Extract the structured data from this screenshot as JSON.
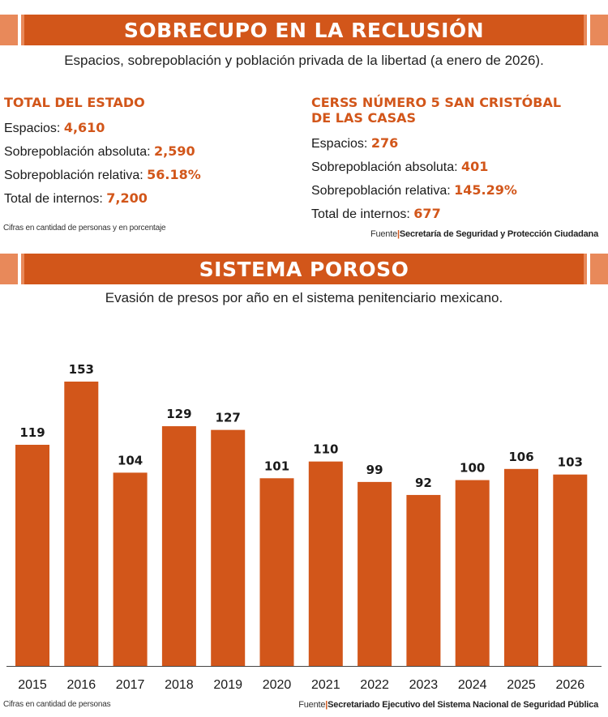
{
  "section1": {
    "title": "SOBRECUPO EN LA RECLUSIÓN",
    "subtitle": "Espacios, sobrepoblación y población privada de la libertad (a enero de 2026).",
    "state": {
      "heading": "TOTAL DEL ESTADO",
      "rows": [
        {
          "label": "Espacios: ",
          "value": "4,610"
        },
        {
          "label": "Sobrepoblación absoluta: ",
          "value": "2,590"
        },
        {
          "label": "Sobrepoblación relativa: ",
          "value": "56.18%"
        },
        {
          "label": "Total de internos: ",
          "value": "7,200"
        }
      ]
    },
    "cerss": {
      "heading_line1": "CERSS NÚMERO 5 SAN CRISTÓBAL",
      "heading_line2": "DE LAS CASAS",
      "rows": [
        {
          "label": "Espacios: ",
          "value": "276"
        },
        {
          "label": "Sobrepoblación absoluta: ",
          "value": "401"
        },
        {
          "label": "Sobrepoblación relativa: ",
          "value": "145.29%"
        },
        {
          "label": "Total de internos: ",
          "value": "677"
        }
      ]
    },
    "note": "Cifras en cantidad de personas y en porcentaje",
    "source_label": "Fuente",
    "source_sep": "|",
    "source": "Secretaría de Seguridad y Protección Ciudadana"
  },
  "section2": {
    "title": "SISTEMA POROSO",
    "subtitle": "Evasión de presos por año en el sistema penitenciario mexicano.",
    "note": "Cifras en cantidad de personas",
    "source_label": "Fuente",
    "source_sep": "|",
    "source": "Secretariado Ejecutivo del Sistema Nacional de Seguridad Pública"
  },
  "colors": {
    "accent": "#d2561a",
    "accent_light": "#e8895a"
  },
  "chart_data": {
    "type": "bar",
    "title": "",
    "xlabel": "",
    "ylabel": "",
    "categories": [
      "2015",
      "2016",
      "2017",
      "2018",
      "2019",
      "2020",
      "2021",
      "2022",
      "2023",
      "2024",
      "2025",
      "2026"
    ],
    "values": [
      119,
      153,
      104,
      129,
      127,
      101,
      110,
      99,
      92,
      100,
      106,
      103
    ],
    "ylim": [
      0,
      170
    ],
    "grid": false,
    "data_labels": true,
    "bar_color": "#d2561a"
  }
}
